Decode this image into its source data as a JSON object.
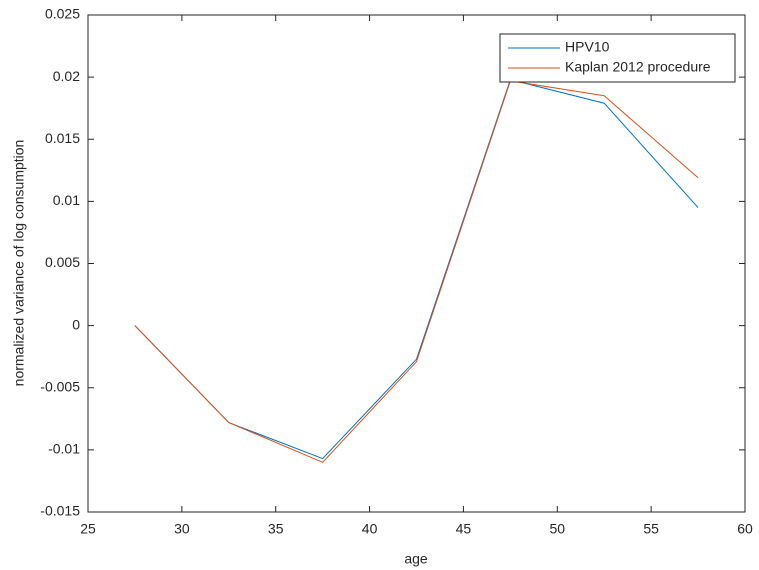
{
  "chart_data": {
    "type": "line",
    "xlabel": "age",
    "ylabel": "normalized variance of log consumption",
    "x": [
      27.5,
      32.5,
      37.5,
      42.5,
      47.5,
      52.5,
      57.5
    ],
    "series": [
      {
        "name": "HPV10",
        "color": "#0072bd",
        "values": [
          0,
          -0.0078,
          -0.0107,
          -0.0027,
          0.0198,
          0.0179,
          0.0095
        ]
      },
      {
        "name": "Kaplan 2012 procedure",
        "color": "#d95319",
        "values": [
          0,
          -0.0078,
          -0.011,
          -0.0029,
          0.0197,
          0.0185,
          0.0119
        ]
      }
    ],
    "xlim": [
      25,
      60
    ],
    "xticks": [
      25,
      30,
      35,
      40,
      45,
      50,
      55,
      60
    ],
    "ylim": [
      -0.015,
      0.025
    ],
    "yticks": [
      -0.015,
      -0.01,
      -0.005,
      0,
      0.005,
      0.01,
      0.015,
      0.02,
      0.025
    ],
    "legend": "northeast",
    "grid": false
  }
}
